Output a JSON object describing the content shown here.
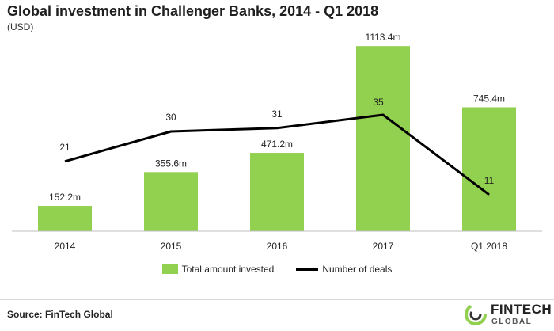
{
  "header": {
    "title": "Global investment in Challenger Banks, 2014 - Q1 2018",
    "subtitle": "(USD)"
  },
  "colors": {
    "bar": "#92d050",
    "line": "#000000",
    "axis": "#bfbfbf",
    "text": "#222222"
  },
  "legend": {
    "bar_label": "Total amount invested",
    "line_label": "Number of deals"
  },
  "footer": {
    "source": "Source: FinTech Global",
    "logo_line1": "FINTECH",
    "logo_line2": "GLOBAL"
  },
  "chart_data": {
    "type": "bar",
    "categories": [
      "2014",
      "2015",
      "2016",
      "2017",
      "Q1 2018"
    ],
    "series": [
      {
        "name": "Total amount invested",
        "type": "bar",
        "values": [
          152.2,
          355.6,
          471.2,
          1113.4,
          745.4
        ],
        "labels": [
          "152.2m",
          "355.6m",
          "471.2m",
          "1113.4m",
          "745.4m"
        ]
      },
      {
        "name": "Number of deals",
        "type": "line",
        "values": [
          21,
          30,
          31,
          35,
          11
        ],
        "labels": [
          "21",
          "30",
          "31",
          "35",
          "11"
        ]
      }
    ],
    "grid": false,
    "legend_position": "bottom"
  }
}
